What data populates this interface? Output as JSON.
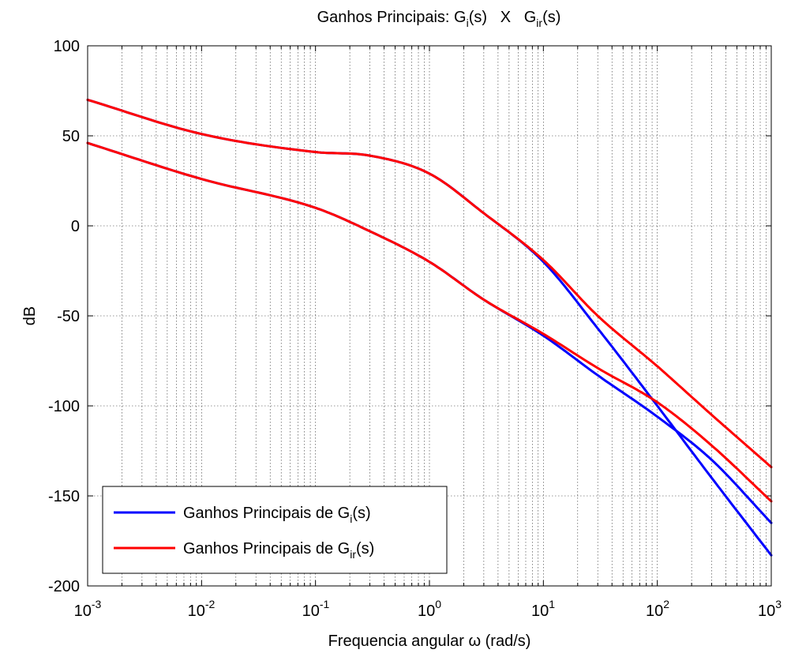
{
  "chart_data": {
    "type": "line",
    "title": {
      "prefix": "Ganhos Principais: G",
      "sub1": "i",
      "mid": "(s)   X   G",
      "sub2": "ir",
      "suffix": "(s)"
    },
    "xlabel": "Frequencia angular ω (rad/s)",
    "ylabel": "dB",
    "x_scale": "log",
    "xlim": [
      0.001,
      1000
    ],
    "ylim": [
      -200,
      100
    ],
    "grid": true,
    "legend_position": "bottom-left",
    "x_ticks": [
      {
        "base": "10",
        "exp": "-3"
      },
      {
        "base": "10",
        "exp": "-2"
      },
      {
        "base": "10",
        "exp": "-1"
      },
      {
        "base": "10",
        "exp": "0"
      },
      {
        "base": "10",
        "exp": "1"
      },
      {
        "base": "10",
        "exp": "2"
      },
      {
        "base": "10",
        "exp": "3"
      }
    ],
    "y_ticks": [
      "100",
      "50",
      "0",
      "-50",
      "-100",
      "-150",
      "-200"
    ],
    "legend": [
      {
        "prefix": "Ganhos Principais de G",
        "sub": "i",
        "suffix": "(s)",
        "color": "#0000FF"
      },
      {
        "prefix": "Ganhos Principais de G",
        "sub": "ir",
        "suffix": "(s)",
        "color": "#FF0000"
      }
    ],
    "series": [
      {
        "color": "#0000FF",
        "x": [
          0.001,
          0.01,
          0.1,
          0.3,
          1,
          3,
          10,
          30,
          100,
          300,
          1000
        ],
        "y": [
          70,
          51,
          41,
          39,
          29,
          7,
          -20,
          -57,
          -100,
          -140,
          -183
        ]
      },
      {
        "color": "#0000FF",
        "x": [
          0.001,
          0.01,
          0.1,
          0.3,
          1,
          3,
          10,
          30,
          100,
          300,
          1000
        ],
        "y": [
          46,
          26,
          10,
          -3,
          -20,
          -41,
          -61,
          -83,
          -106,
          -130,
          -165
        ]
      },
      {
        "color": "#FF0000",
        "x": [
          0.001,
          0.01,
          0.1,
          0.3,
          1,
          3,
          10,
          30,
          100,
          300,
          1000
        ],
        "y": [
          70,
          51,
          41,
          39,
          29,
          7,
          -19,
          -50,
          -78,
          -105,
          -134
        ]
      },
      {
        "color": "#FF0000",
        "x": [
          0.001,
          0.01,
          0.1,
          0.3,
          1,
          3,
          10,
          30,
          100,
          300,
          1000
        ],
        "y": [
          46,
          26,
          10,
          -3,
          -20,
          -41,
          -60,
          -79,
          -98,
          -122,
          -153
        ]
      }
    ]
  }
}
